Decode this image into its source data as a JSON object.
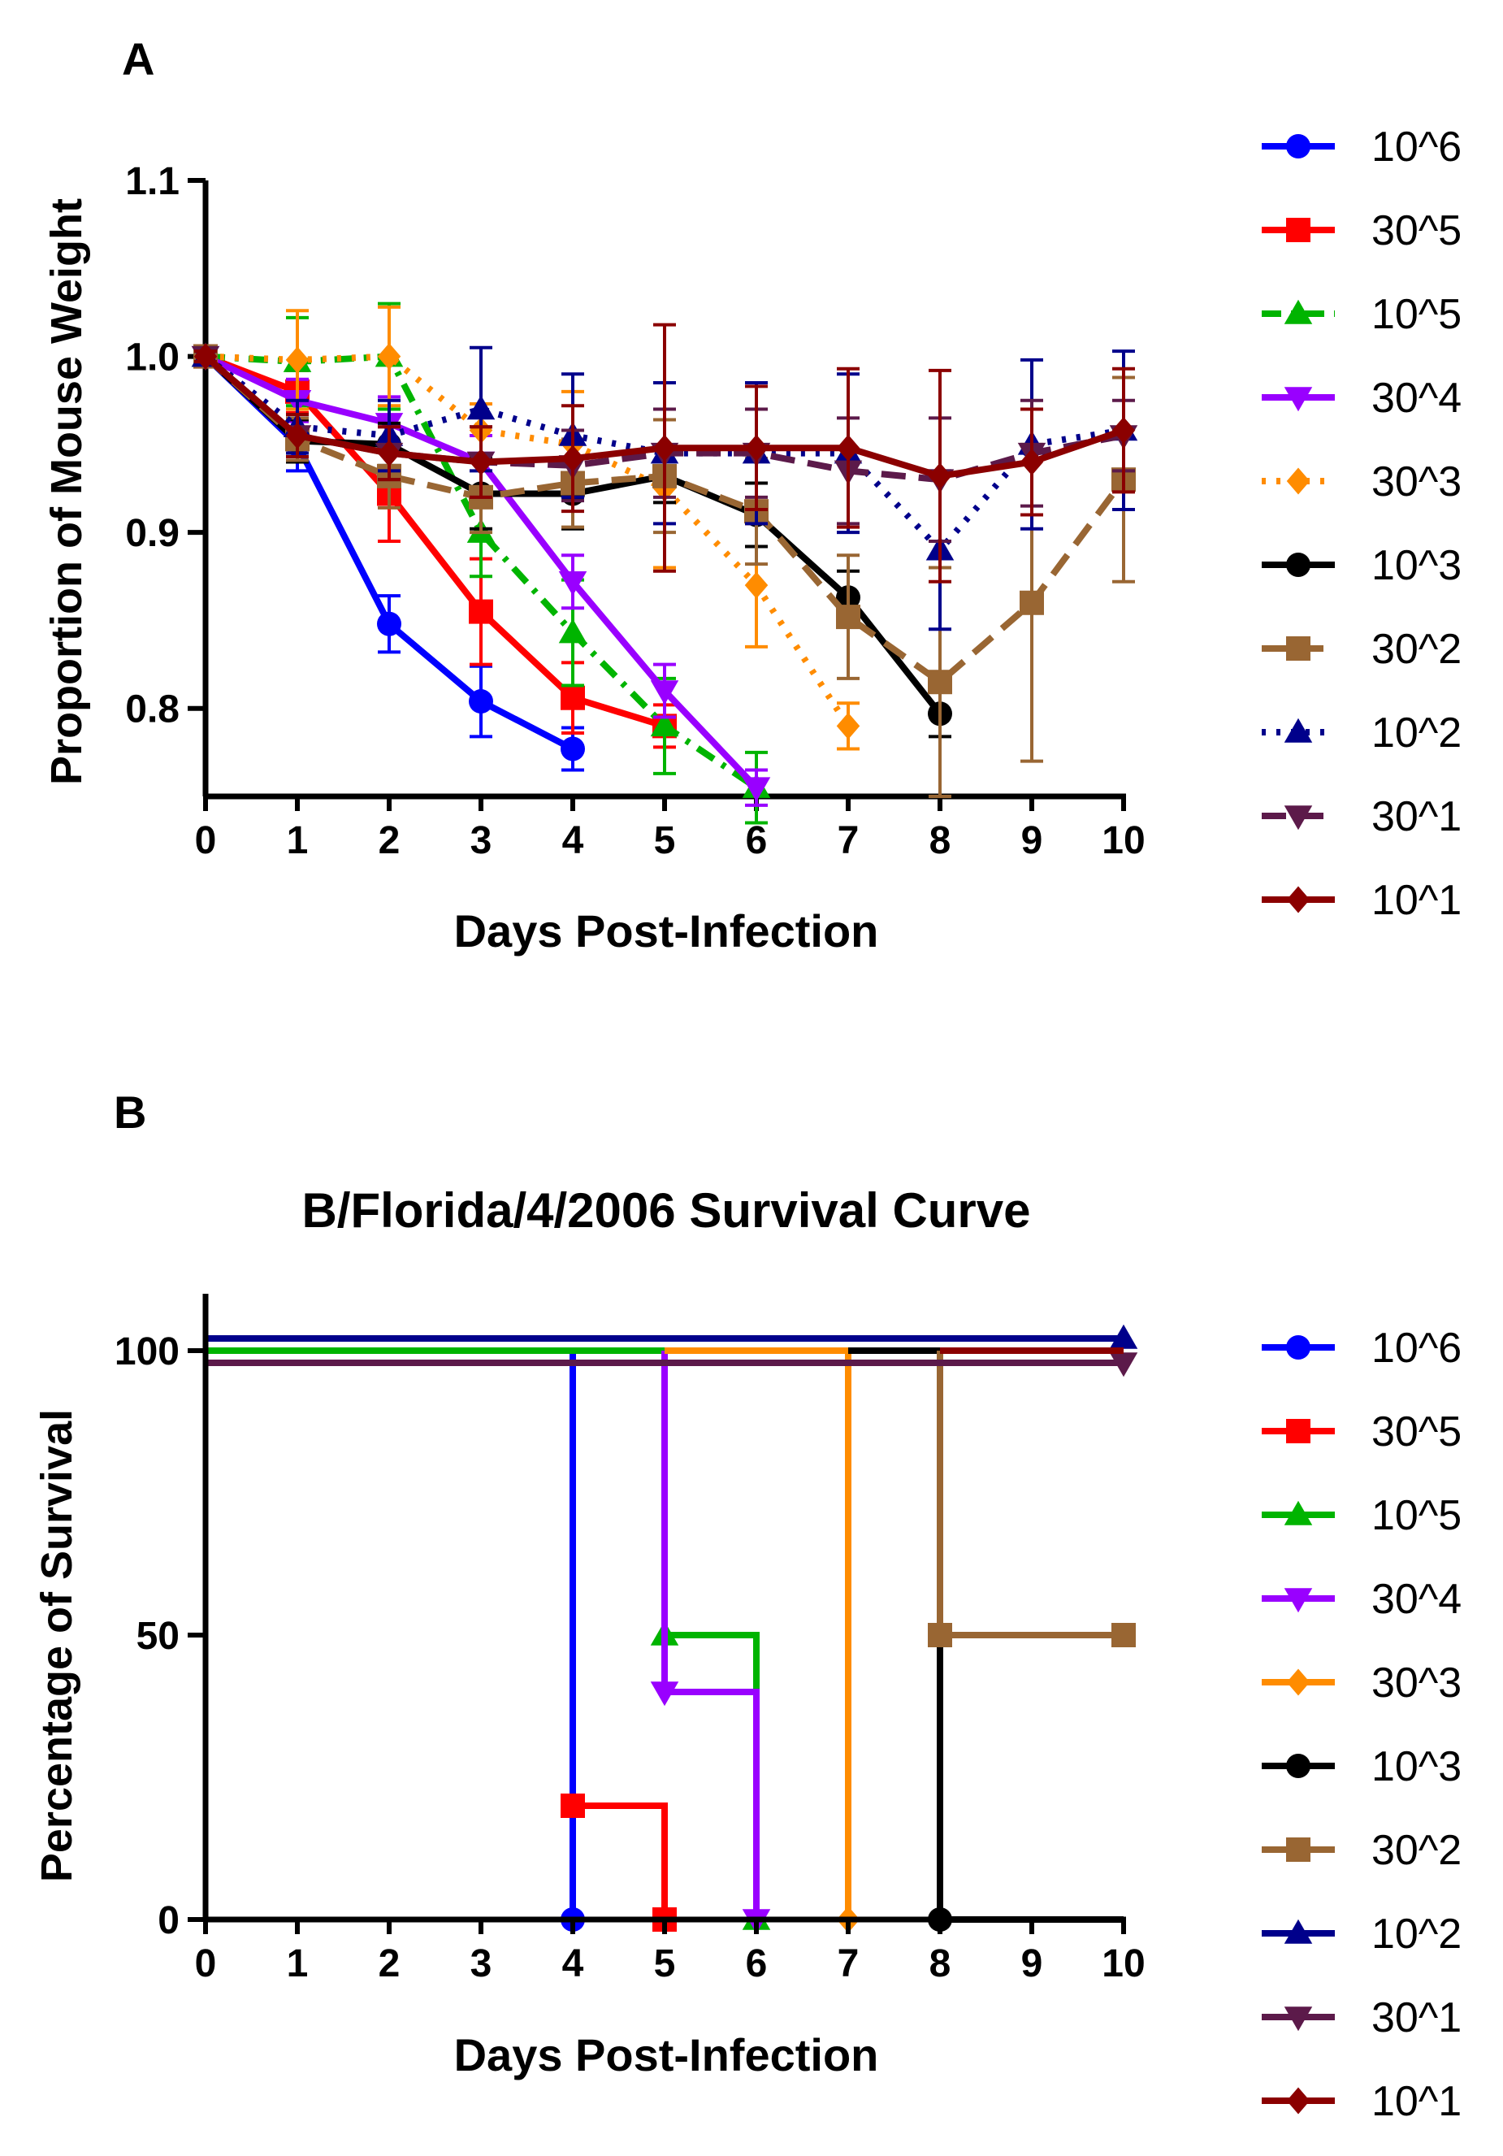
{
  "chart_data": [
    {
      "panel": "A",
      "type": "line",
      "title": "",
      "xlabel": "Days Post-Infection",
      "ylabel": "Proportion of Mouse Weight",
      "xlim": [
        0,
        10
      ],
      "ylim": [
        0.75,
        1.1
      ],
      "x_ticks": [
        "0",
        "1",
        "2",
        "3",
        "4",
        "5",
        "6",
        "7",
        "8",
        "9",
        "10"
      ],
      "y_ticks": [
        "0.8",
        "0.9",
        "1.0",
        "1.1"
      ],
      "grid": false,
      "legend_position": "right",
      "series": [
        {
          "name": "10^6",
          "color": "#0000ff",
          "marker": "circle",
          "dash": "solid",
          "x": [
            0,
            1,
            2,
            3,
            4
          ],
          "values": [
            1.0,
            0.95,
            0.848,
            0.804,
            0.777
          ],
          "err": [
            0.003,
            0.015,
            0.016,
            0.02,
            0.012
          ]
        },
        {
          "name": "30^5",
          "color": "#ff0000",
          "marker": "square",
          "dash": "solid",
          "x": [
            0,
            1,
            2,
            3,
            4,
            5
          ],
          "values": [
            1.0,
            0.98,
            0.922,
            0.855,
            0.806,
            0.79
          ],
          "err": [
            0.003,
            0.012,
            0.027,
            0.03,
            0.02,
            0.012
          ]
        },
        {
          "name": "10^5",
          "color": "#00b400",
          "marker": "triangle-up",
          "dash": "dashdot",
          "x": [
            0,
            1,
            2,
            3,
            4,
            5,
            6
          ],
          "values": [
            1.0,
            0.997,
            1.0,
            0.9,
            0.843,
            0.79,
            0.755
          ],
          "err": [
            0.003,
            0.025,
            0.03,
            0.025,
            0.03,
            0.027,
            0.02
          ]
        },
        {
          "name": "30^4",
          "color": "#9900ff",
          "marker": "triangle-down",
          "dash": "solid",
          "x": [
            0,
            1,
            2,
            3,
            4,
            5,
            6
          ],
          "values": [
            1.0,
            0.975,
            0.962,
            0.94,
            0.872,
            0.81,
            0.755
          ],
          "err": [
            0.003,
            0.012,
            0.015,
            0.015,
            0.015,
            0.015,
            0.01
          ]
        },
        {
          "name": "30^3",
          "color": "#ff8c00",
          "marker": "diamond",
          "dash": "dotted",
          "x": [
            0,
            1,
            2,
            3,
            4,
            5,
            6,
            7
          ],
          "values": [
            1.0,
            0.998,
            1.0,
            0.958,
            0.95,
            0.925,
            0.87,
            0.79
          ],
          "err": [
            0.003,
            0.028,
            0.028,
            0.015,
            0.03,
            0.045,
            0.035,
            0.013
          ]
        },
        {
          "name": "10^3",
          "color": "#000000",
          "marker": "circle",
          "dash": "solid",
          "x": [
            0,
            1,
            2,
            3,
            4,
            5,
            6,
            7,
            8
          ],
          "values": [
            1.0,
            0.952,
            0.95,
            0.922,
            0.922,
            0.932,
            0.91,
            0.863,
            0.797
          ],
          "err": [
            0.003,
            0.012,
            0.012,
            0.02,
            0.02,
            0.015,
            0.018,
            0.015,
            0.013
          ]
        },
        {
          "name": "30^2",
          "color": "#996633",
          "marker": "square",
          "dash": "dashed",
          "x": [
            0,
            1,
            2,
            3,
            4,
            5,
            6,
            7,
            8,
            9,
            10
          ],
          "values": [
            1.0,
            0.953,
            0.932,
            0.92,
            0.928,
            0.932,
            0.912,
            0.852,
            0.815,
            0.86,
            0.93
          ],
          "err": [
            0.003,
            0.012,
            0.018,
            0.02,
            0.025,
            0.032,
            0.03,
            0.035,
            0.065,
            0.09,
            0.058
          ]
        },
        {
          "name": "10^2",
          "color": "#00008b",
          "marker": "triangle-up",
          "dash": "dotted",
          "x": [
            0,
            1,
            2,
            3,
            4,
            5,
            6,
            7,
            8,
            9,
            10
          ],
          "values": [
            1.0,
            0.96,
            0.955,
            0.97,
            0.955,
            0.945,
            0.945,
            0.945,
            0.89,
            0.95,
            0.958
          ],
          "err": [
            0.003,
            0.015,
            0.02,
            0.035,
            0.035,
            0.04,
            0.04,
            0.045,
            0.045,
            0.048,
            0.045
          ]
        },
        {
          "name": "30^1",
          "color": "#5c1a4a",
          "marker": "triangle-down",
          "dash": "dashed",
          "x": [
            0,
            1,
            2,
            3,
            4,
            5,
            6,
            7,
            8,
            9,
            10
          ],
          "values": [
            1.0,
            0.955,
            0.945,
            0.94,
            0.938,
            0.945,
            0.945,
            0.935,
            0.93,
            0.945,
            0.955
          ],
          "err": [
            0.003,
            0.012,
            0.015,
            0.02,
            0.02,
            0.025,
            0.025,
            0.03,
            0.035,
            0.03,
            0.02
          ]
        },
        {
          "name": "10^1",
          "color": "#8b0000",
          "marker": "diamond",
          "dash": "solid",
          "x": [
            0,
            1,
            2,
            3,
            4,
            5,
            6,
            7,
            8,
            9,
            10
          ],
          "values": [
            1.0,
            0.955,
            0.945,
            0.94,
            0.942,
            0.948,
            0.948,
            0.948,
            0.932,
            0.94,
            0.958
          ],
          "err": [
            0.003,
            0.012,
            0.015,
            0.02,
            0.03,
            0.07,
            0.035,
            0.045,
            0.06,
            0.03,
            0.035
          ]
        }
      ]
    },
    {
      "panel": "B",
      "type": "line",
      "title": "B/Florida/4/2006 Survival Curve",
      "xlabel": "Days Post-Infection",
      "ylabel": "Percentage of Survival",
      "xlim": [
        0,
        10
      ],
      "ylim": [
        0,
        110
      ],
      "x_ticks": [
        "0",
        "1",
        "2",
        "3",
        "4",
        "5",
        "6",
        "7",
        "8",
        "9",
        "10"
      ],
      "y_ticks": [
        "0",
        "50",
        "100"
      ],
      "grid": false,
      "legend_position": "right",
      "series": [
        {
          "name": "10^6",
          "color": "#0000ff",
          "marker": "circle",
          "offset": 0,
          "x": [
            0,
            4,
            4
          ],
          "values": [
            100,
            100,
            0
          ],
          "marked_x": [
            4
          ]
        },
        {
          "name": "30^5",
          "color": "#ff0000",
          "marker": "square",
          "offset": 0,
          "x": [
            4,
            5,
            5
          ],
          "values": [
            20,
            20,
            0
          ],
          "marked_x": [
            4,
            5
          ]
        },
        {
          "name": "10^5",
          "color": "#00b400",
          "marker": "triangle-up",
          "offset": 0,
          "x": [
            0,
            5,
            5,
            6,
            6
          ],
          "values": [
            100,
            100,
            50,
            50,
            0
          ],
          "marked_x": [
            5,
            6
          ]
        },
        {
          "name": "30^4",
          "color": "#9900ff",
          "marker": "triangle-down",
          "offset": 0,
          "x": [
            5,
            5,
            6,
            6
          ],
          "values": [
            100,
            40,
            40,
            0
          ],
          "marked_x": [
            5,
            6
          ]
        },
        {
          "name": "30^3",
          "color": "#ff8c00",
          "marker": "diamond",
          "offset": 0,
          "x": [
            5,
            7,
            7
          ],
          "values": [
            100,
            100,
            0
          ],
          "marked_x": [
            7
          ]
        },
        {
          "name": "10^3",
          "color": "#000000",
          "marker": "circle",
          "offset": 0,
          "x": [
            7,
            8,
            8,
            10
          ],
          "values": [
            100,
            100,
            0,
            0
          ],
          "marked_x": [
            8
          ]
        },
        {
          "name": "30^2",
          "color": "#996633",
          "marker": "square",
          "offset": 0,
          "x": [
            8,
            8,
            10
          ],
          "values": [
            100,
            50,
            50
          ],
          "marked_x": [
            8,
            10
          ]
        },
        {
          "name": "10^2",
          "color": "#00008b",
          "marker": "triangle-up",
          "offset": -3,
          "x": [
            0,
            10
          ],
          "values": [
            100,
            100
          ],
          "marked_x": [
            10
          ]
        },
        {
          "name": "30^1",
          "color": "#5c1a4a",
          "marker": "triangle-down",
          "offset": 3,
          "x": [
            0,
            10
          ],
          "values": [
            100,
            100
          ],
          "marked_x": [
            10
          ]
        },
        {
          "name": "10^1",
          "color": "#8b0000",
          "marker": "diamond",
          "offset": 0,
          "x": [
            8,
            10
          ],
          "values": [
            100,
            100
          ],
          "marked_x": []
        }
      ]
    }
  ],
  "panelA": {
    "letter": "A",
    "xlabel": "Days Post-Infection",
    "ylabel": "Proportion of Mouse Weight"
  },
  "panelB": {
    "letter": "B",
    "title": "B/Florida/4/2006 Survival Curve",
    "xlabel": "Days Post-Infection",
    "ylabel": "Percentage of Survival"
  }
}
